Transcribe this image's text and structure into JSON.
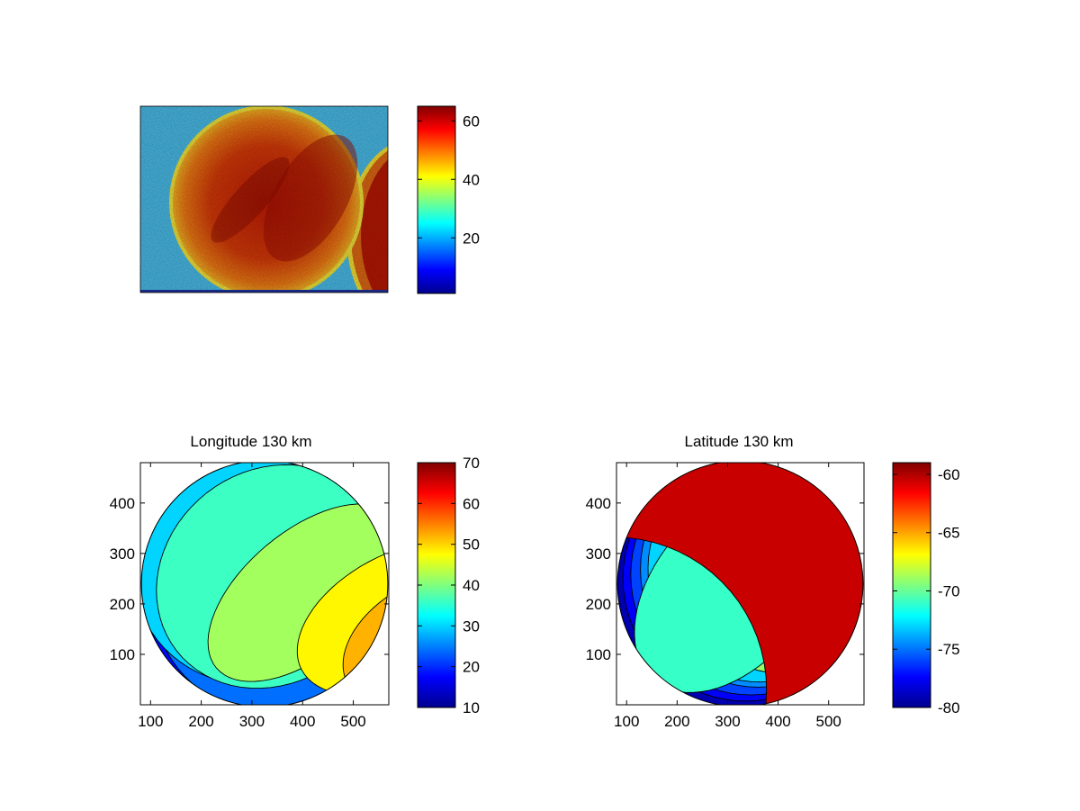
{
  "chart_data": [
    {
      "type": "heatmap",
      "title": "",
      "xlabel": "",
      "ylabel": "",
      "description_colormap": "jet",
      "colorbar": {
        "ticks": [
          20,
          40,
          60
        ],
        "range": [
          1,
          65
        ]
      }
    },
    {
      "type": "heatmap",
      "title": "Longitude 130 km",
      "xlabel": "",
      "ylabel": "",
      "xlim": [
        80,
        570
      ],
      "ylim": [
        0,
        480
      ],
      "xticks": [
        100,
        200,
        300,
        400,
        500
      ],
      "yticks": [
        100,
        200,
        300,
        400
      ],
      "colorbar": {
        "ticks": [
          10,
          20,
          30,
          40,
          50,
          60,
          70
        ],
        "range": [
          10,
          70
        ]
      },
      "contour_levels": [
        14,
        18,
        22,
        26,
        30,
        34,
        38,
        42,
        46,
        50,
        54,
        58
      ],
      "field": {
        "center_value": 40,
        "gradient_direction_deg": -20,
        "x_center": 325,
        "y_center": 240,
        "radius": 243
      }
    },
    {
      "type": "heatmap",
      "title": "Latitude 130 km",
      "xlabel": "",
      "ylabel": "",
      "xlim": [
        80,
        570
      ],
      "ylim": [
        0,
        480
      ],
      "xticks": [
        100,
        200,
        300,
        400,
        500
      ],
      "yticks": [
        100,
        200,
        300,
        400
      ],
      "colorbar": {
        "ticks": [
          -60,
          -65,
          -70,
          -75,
          -80
        ],
        "range": [
          -80,
          -59
        ]
      },
      "contour_levels": [
        -78,
        -77,
        -76,
        -75,
        -74,
        -73,
        -71,
        -69,
        -67,
        -66,
        -65,
        -64,
        -63,
        -62
      ],
      "field": {
        "center_value": -70.5,
        "gradient_direction_deg": 55,
        "x_center": 325,
        "y_center": 240,
        "radius": 243
      }
    }
  ],
  "colors": {
    "axis": "#000000",
    "background": "#ffffff"
  }
}
